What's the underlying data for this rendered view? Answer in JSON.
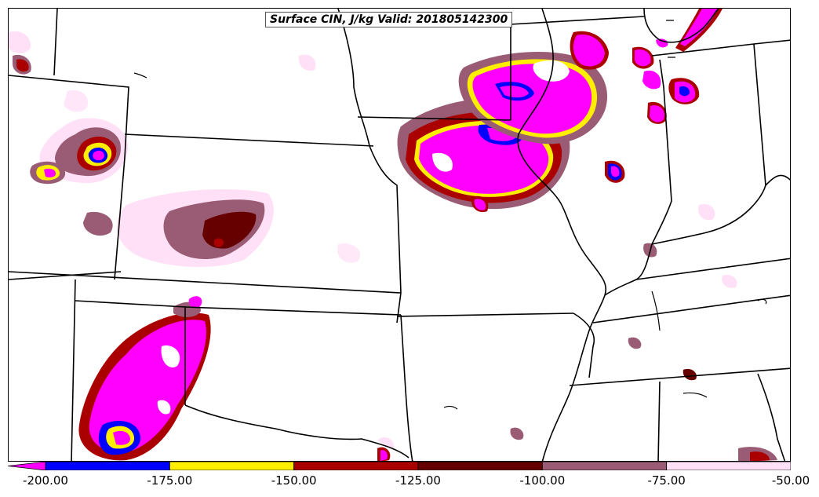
{
  "title": "Surface CIN, J/kg Valid: 201805142300",
  "colorbar": {
    "extend": "min",
    "bins": [
      {
        "from": -200,
        "to": -175,
        "color": "#0000ff"
      },
      {
        "from": -175,
        "to": -150,
        "color": "#ffee00"
      },
      {
        "from": -150,
        "to": -125,
        "color": "#aa0000"
      },
      {
        "from": -125,
        "to": -100,
        "color": "#660000"
      },
      {
        "from": -100,
        "to": -75,
        "color": "#9a5c74"
      },
      {
        "from": -75,
        "to": -50,
        "color": "#ffe0f6"
      }
    ],
    "under_color": "#ff00ff",
    "tick_labels": [
      "-200.00",
      "-175.00",
      "-150.00",
      "-125.00",
      "-100.00",
      "-75.00",
      "-50.00"
    ]
  },
  "map": {
    "background": "#ffffff",
    "boundary_color": "#000000"
  }
}
